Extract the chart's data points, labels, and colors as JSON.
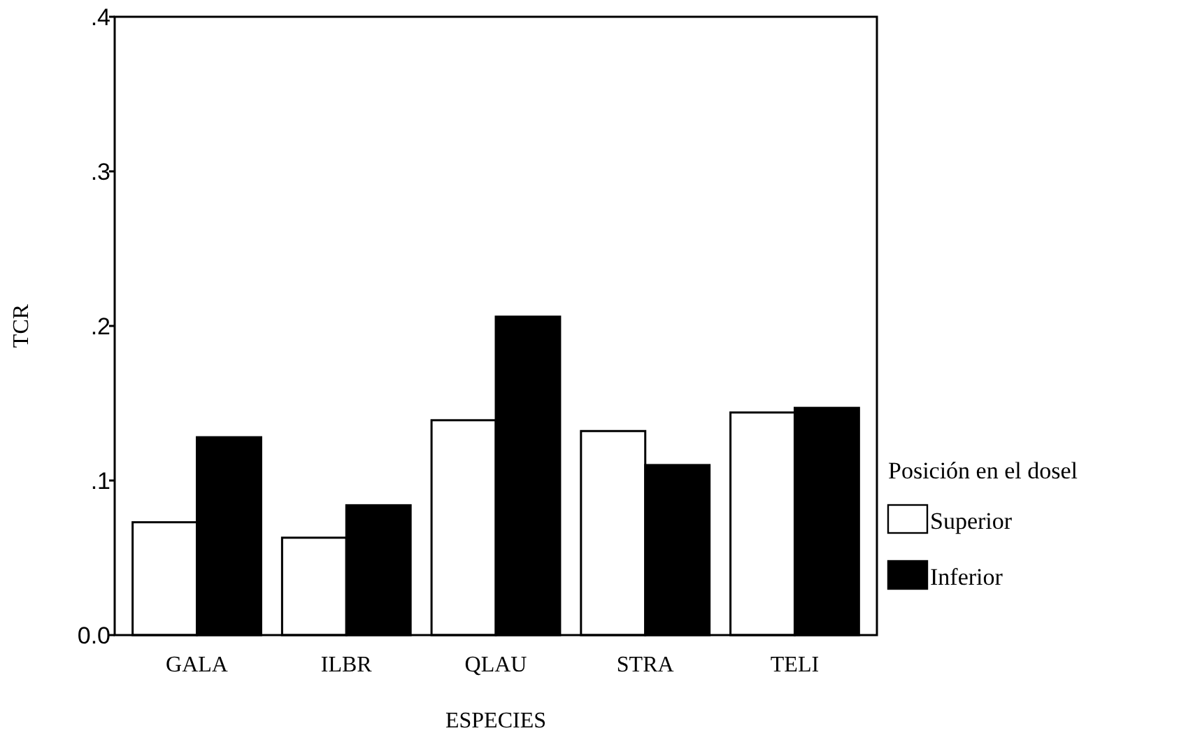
{
  "chart_data": {
    "type": "bar",
    "xlabel": "ESPECIES",
    "ylabel": "TCR",
    "legend_title": "Posición en el dosel",
    "legend": "right",
    "categories": [
      "GALA",
      "ILBR",
      "QLAU",
      "STRA",
      "TELI"
    ],
    "series": [
      {
        "name": "Superior",
        "color": "#ffffff",
        "values": [
          0.073,
          0.063,
          0.139,
          0.132,
          0.144
        ]
      },
      {
        "name": "Inferior",
        "color": "#000000",
        "values": [
          0.128,
          0.084,
          0.206,
          0.11,
          0.147
        ]
      }
    ],
    "ylim": [
      0,
      0.4
    ],
    "yticks": [
      {
        "value": 0,
        "label": "0.0"
      },
      {
        "value": 0.1,
        "label": ".1"
      },
      {
        "value": 0.2,
        "label": ".2"
      },
      {
        "value": 0.3,
        "label": ".3"
      },
      {
        "value": 0.4,
        "label": ".4"
      }
    ]
  }
}
